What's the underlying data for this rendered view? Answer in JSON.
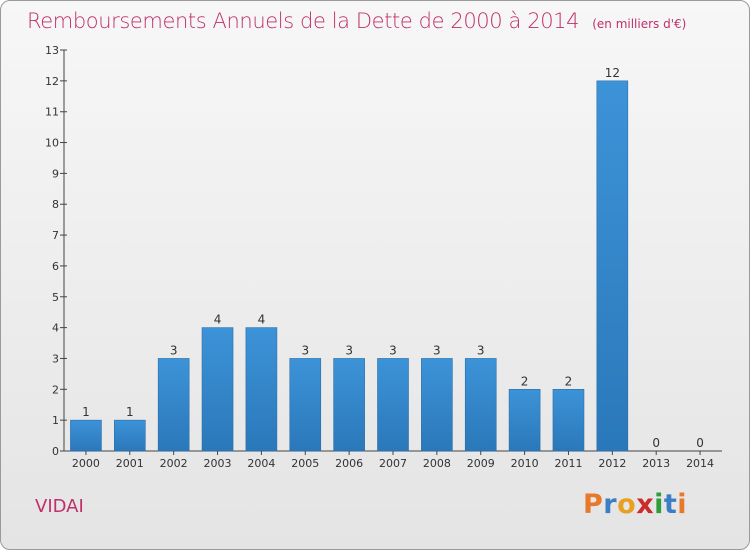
{
  "title": "Remboursements Annuels de la Dette de 2000 à 2014",
  "unit": "(en milliers d'€)",
  "commune": "VIDAI",
  "logo": {
    "text": "Proxiti",
    "colors": [
      "#e8782a",
      "#3a7fc4",
      "#e8a020",
      "#cc2b2b",
      "#2f9d3a",
      "#3a7fc4",
      "#e8782a"
    ]
  },
  "colors": {
    "bar": "#3d93d8",
    "bar_dark": "#2a78ba",
    "title": "#c0306a"
  },
  "chart_data": {
    "type": "bar",
    "categories": [
      "2000",
      "2001",
      "2002",
      "2003",
      "2004",
      "2005",
      "2006",
      "2007",
      "2008",
      "2009",
      "2010",
      "2011",
      "2012",
      "2013",
      "2014"
    ],
    "values": [
      1,
      1,
      3,
      4,
      4,
      3,
      3,
      3,
      3,
      3,
      2,
      2,
      12,
      0,
      0
    ],
    "data_labels": [
      "1",
      "1",
      "3",
      "4",
      "4",
      "3",
      "3",
      "3",
      "3",
      "3",
      "2",
      "2",
      "12",
      "0",
      "0"
    ],
    "ylim": [
      0,
      13
    ],
    "yticks": [
      "0",
      "1",
      "2",
      "3",
      "4",
      "5",
      "6",
      "7",
      "8",
      "9",
      "10",
      "11",
      "12",
      "13"
    ],
    "grid": false,
    "legend": "none"
  }
}
